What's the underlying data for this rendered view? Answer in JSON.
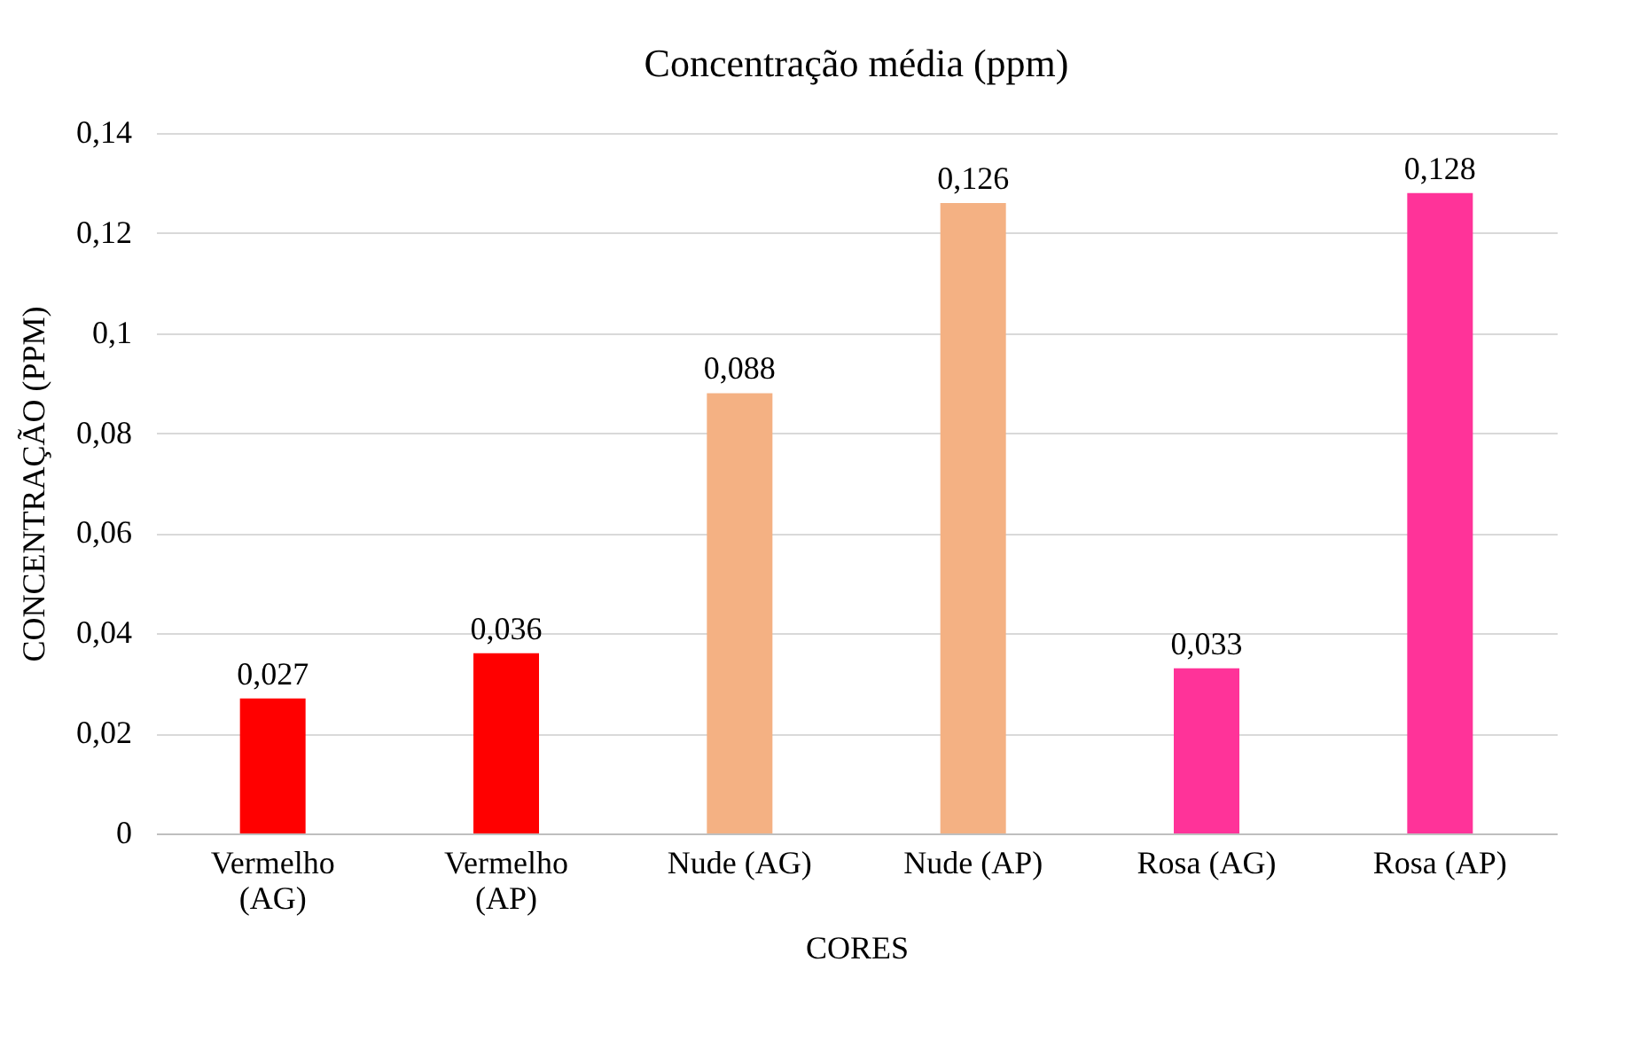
{
  "chart_data": {
    "type": "bar",
    "title": "Concentração média (ppm)",
    "xlabel": "CORES",
    "ylabel": "CONCENTRAÇÃO (PPM)",
    "categories": [
      "Vermelho (AG)",
      "Vermelho (AP)",
      "Nude (AG)",
      "Nude (AP)",
      "Rosa (AG)",
      "Rosa (AP)"
    ],
    "values": [
      0.027,
      0.036,
      0.088,
      0.126,
      0.033,
      0.128
    ],
    "value_labels": [
      "0,027",
      "0,036",
      "0,088",
      "0,126",
      "0,033",
      "0,128"
    ],
    "colors": [
      "#ff0000",
      "#ff0000",
      "#f4b183",
      "#f4b183",
      "#ff3399",
      "#ff3399"
    ],
    "ylim": [
      0,
      0.14
    ],
    "yticks": [
      {
        "value": 0,
        "label": "0"
      },
      {
        "value": 0.02,
        "label": "0,02"
      },
      {
        "value": 0.04,
        "label": "0,04"
      },
      {
        "value": 0.06,
        "label": "0,06"
      },
      {
        "value": 0.08,
        "label": "0,08"
      },
      {
        "value": 0.1,
        "label": "0,1"
      },
      {
        "value": 0.12,
        "label": "0,12"
      },
      {
        "value": 0.14,
        "label": "0,14"
      }
    ],
    "grid": "y",
    "legend": false
  }
}
